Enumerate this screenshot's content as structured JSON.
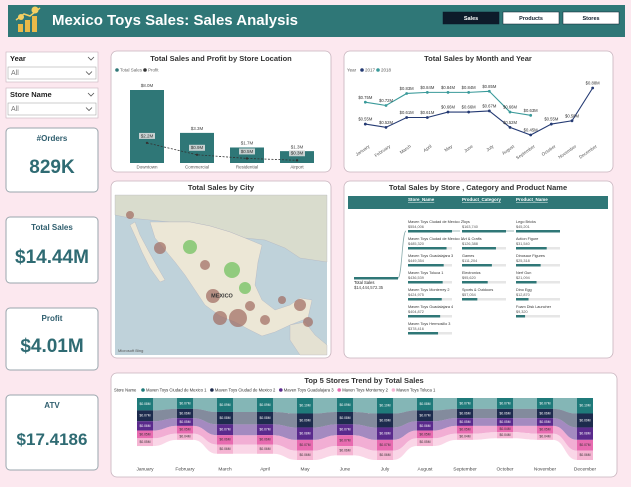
{
  "header": {
    "title": "Mexico Toys Sales: Sales Analysis"
  },
  "nav": [
    "Sales",
    "Products",
    "Stores"
  ],
  "slicers": [
    {
      "label": "Year",
      "value": "All"
    },
    {
      "label": "Store Name",
      "value": "All"
    }
  ],
  "kpis": [
    {
      "label": "#Orders",
      "value": "829K"
    },
    {
      "label": "Total Sales",
      "value": "$14.44M"
    },
    {
      "label": "Profit",
      "value": "$4.01M"
    },
    {
      "label": "ATV",
      "value": "$17.4186"
    }
  ],
  "chart_data": [
    {
      "type": "bar-line",
      "title": "Total Sales and Profit by Store Location",
      "categories": [
        "Downtown",
        "Commercial",
        "Residential",
        "Airport"
      ],
      "series": [
        {
          "name": "Total Sales",
          "color": "#2f7777",
          "values": [
            8.0,
            3.3,
            1.7,
            1.3
          ],
          "value_labels": [
            "$8.0M",
            "$3.3M",
            "$1.7M",
            "$1.3M"
          ]
        },
        {
          "name": "Profit",
          "color": "#333333",
          "values": [
            2.2,
            0.9,
            0.5,
            0.3
          ],
          "value_labels": [
            "$2.2M",
            "$0.9M",
            "$0.5M",
            "$0.3M"
          ]
        }
      ]
    },
    {
      "type": "line",
      "title": "Total Sales by Month and Year",
      "legend_title": "Year",
      "categories": [
        "January",
        "February",
        "March",
        "April",
        "May",
        "June",
        "July",
        "August",
        "September",
        "October",
        "November",
        "December"
      ],
      "series": [
        {
          "name": "2017",
          "color": "#243a73",
          "values": [
            0.55,
            0.52,
            0.61,
            0.61,
            0.66,
            0.66,
            0.67,
            0.52,
            0.45,
            0.55,
            0.58,
            0.88
          ],
          "value_labels": [
            "$0.55M",
            "$0.52M",
            "$0.61M",
            "$0.61M",
            "$0.66M",
            "$0.66M",
            "$0.67M",
            "$0.52M",
            "$0.45M",
            "$0.55M",
            "$0.58M",
            "$0.88M"
          ]
        },
        {
          "name": "2018",
          "color": "#3a9a9a",
          "values": [
            0.75,
            0.72,
            0.83,
            0.84,
            0.84,
            0.84,
            0.85,
            0.66,
            0.63,
            null,
            null,
            null
          ],
          "value_labels": [
            "$0.75M",
            "$0.72M",
            "$0.83M",
            "$0.84M",
            "$0.84M",
            "$0.84M",
            "$0.85M",
            "$0.66M",
            "$0.63M",
            null,
            null,
            null
          ]
        }
      ]
    },
    {
      "type": "map",
      "title": "Total Sales by City",
      "place_label": "MEXICO",
      "attribution": "Microsoft Bing"
    },
    {
      "type": "tree",
      "title": "Total Sales by Store , Category and Product Name",
      "levels": [
        "Store_Name",
        "Product_Category",
        "Product_Name"
      ],
      "root": {
        "label": "Total Sales",
        "value": 14444572.35,
        "value_label": "$14,444,572.35"
      },
      "nodes": [
        [
          {
            "label": "Maven Toys Ciudad de Mexico 2",
            "value": 554006,
            "value_label": "$554,006"
          },
          {
            "label": "Maven Toys Ciudad de Mexico 1",
            "value": 485320,
            "value_label": "$485,320"
          },
          {
            "label": "Maven Toys Guadalajara 3",
            "value": 449354,
            "value_label": "$449,354"
          },
          {
            "label": "Maven Toys Toluca 1",
            "value": 436539,
            "value_label": "$436,539"
          },
          {
            "label": "Maven Toys Monterrey 2",
            "value": 424975,
            "value_label": "$424,975"
          },
          {
            "label": "Maven Toys Guadalajara 4",
            "value": 404872,
            "value_label": "$404,872"
          },
          {
            "label": "Maven Toys Hermosillo 3",
            "value": 378416,
            "value_label": "$378,416"
          }
        ],
        [
          {
            "label": "Toys",
            "value": 163740,
            "value_label": "$163,740"
          },
          {
            "label": "Art & Crafts",
            "value": 126388,
            "value_label": "$126,388"
          },
          {
            "label": "Games",
            "value": 111204,
            "value_label": "$111,204"
          },
          {
            "label": "Electronics",
            "value": 95620,
            "value_label": "$95,620"
          },
          {
            "label": "Sports & Outdoors",
            "value": 57054,
            "value_label": "$57,054"
          }
        ],
        [
          {
            "label": "Lego Bricks",
            "value": 45201,
            "value_label": "$45,201"
          },
          {
            "label": "Action Figure",
            "value": 31540,
            "value_label": "$31,540"
          },
          {
            "label": "Dinosaur Figures",
            "value": 25318,
            "value_label": "$25,318"
          },
          {
            "label": "Nerf Gun",
            "value": 21094,
            "value_label": "$21,094"
          },
          {
            "label": "Dino Egg",
            "value": 12870,
            "value_label": "$12,870"
          },
          {
            "label": "Foam Disk Launcher",
            "value": 9320,
            "value_label": "$9,320"
          }
        ]
      ]
    },
    {
      "type": "ribbon",
      "title": "Top 5 Stores Trend by Total Sales",
      "legend_title": "Store Name",
      "categories": [
        "January",
        "February",
        "March",
        "April",
        "May",
        "June",
        "July",
        "August",
        "September",
        "October",
        "November",
        "December"
      ],
      "series": [
        {
          "name": "Maven Toys Ciudad de Mexico 1",
          "color": "#1f7a7a",
          "values": [
            0.08,
            0.07,
            0.09,
            0.09,
            0.1,
            0.09,
            0.1,
            0.08,
            0.07,
            0.07,
            0.07,
            0.1
          ],
          "value_labels": [
            "$0.08M",
            "$0.07M",
            "$0.09M",
            "$0.09M",
            "$0.10M",
            "$0.09M",
            "$0.10M",
            "$0.08M",
            "$0.07M",
            "$0.07M",
            "$0.07M",
            "$0.10M"
          ]
        },
        {
          "name": "Maven Toys Ciudad de Mexico 2",
          "color": "#1d2b4d",
          "values": [
            0.07,
            0.06,
            0.08,
            0.08,
            0.09,
            0.08,
            0.09,
            0.07,
            0.06,
            0.06,
            0.06,
            0.09
          ],
          "value_labels": [
            "$0.07M",
            "$0.06M",
            "$0.08M",
            "$0.08M",
            "$0.09M",
            "$0.08M",
            "$0.09M",
            "$0.07M",
            "$0.06M",
            "$0.06M",
            "$0.06M",
            "$0.09M"
          ]
        },
        {
          "name": "Maven Toys Guadalajara 3",
          "color": "#5a2a8c",
          "values": [
            0.06,
            0.05,
            0.07,
            0.07,
            0.08,
            0.07,
            0.08,
            0.06,
            0.05,
            0.05,
            0.05,
            0.08
          ],
          "value_labels": [
            "$0.06M",
            "$0.05M",
            "$0.07M",
            "$0.07M",
            "$0.08M",
            "$0.07M",
            "$0.08M",
            "$0.06M",
            "$0.05M",
            "$0.05M",
            "$0.05M",
            "$0.08M"
          ]
        },
        {
          "name": "Maven Toys Monterrey 2",
          "color": "#e86bb0",
          "values": [
            0.05,
            0.05,
            0.06,
            0.06,
            0.07,
            0.07,
            0.07,
            0.05,
            0.05,
            0.04,
            0.05,
            0.07
          ],
          "value_labels": [
            "$0.05M",
            "$0.05M",
            "$0.06M",
            "$0.06M",
            "$0.07M",
            "$0.07M",
            "$0.07M",
            "$0.05M",
            "$0.05M",
            "$0.04M",
            "$0.05M",
            "$0.07M"
          ]
        },
        {
          "name": "Maven Toys Toluca 1",
          "color": "#f5b5d3",
          "values": [
            0.05,
            0.04,
            0.06,
            0.06,
            0.06,
            0.06,
            0.06,
            0.05,
            0.04,
            0.04,
            0.04,
            0.06
          ],
          "value_labels": [
            "$0.05M",
            "$0.04M",
            "$0.06M",
            "$0.06M",
            "$0.06M",
            "$0.06M",
            "$0.06M",
            "$0.05M",
            "$0.04M",
            "$0.04M",
            "$0.04M",
            "$0.06M"
          ]
        }
      ]
    }
  ]
}
